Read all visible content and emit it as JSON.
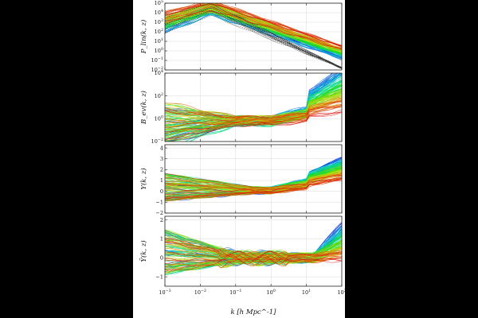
{
  "colors": {
    "background_outer": "#000000",
    "figure_background": "#ffffff",
    "grid": "#cfcfcf",
    "reference_black": "#000000"
  },
  "chart_data": [
    {
      "type": "line",
      "ylabel": "P_lin(k, z)",
      "yscale": "log",
      "ylim_exp": [
        -2,
        5
      ],
      "ytick_labels": [
        "10^-2",
        "10^-1",
        "10^0",
        "10^1",
        "10^2",
        "10^3",
        "10^4",
        "10^5"
      ],
      "xlim": [
        0.001,
        100
      ],
      "xscale": "log",
      "grid": true,
      "series_count": 120,
      "series_description": "many rainbow-colored curves, one per redshift, with a black dashed reference set",
      "representative_series": [
        {
          "color": "#d62728",
          "x": [
            0.001,
            0.01,
            0.05,
            0.1,
            1,
            10,
            100
          ],
          "y": [
            20000,
            60000,
            40000,
            20000,
            800,
            30,
            0.3
          ]
        },
        {
          "color": "#1f77b4",
          "x": [
            0.001,
            0.01,
            0.05,
            0.1,
            1,
            10,
            100
          ],
          "y": [
            600,
            3000,
            6000,
            4000,
            300,
            10,
            0.1
          ]
        },
        {
          "color": "#000000",
          "x": [
            0.001,
            0.01,
            0.05,
            0.1,
            1,
            10,
            100
          ],
          "y": [
            3000,
            20000,
            15000,
            8000,
            100,
            0.5,
            0.01
          ]
        }
      ]
    },
    {
      "type": "line",
      "ylabel": "B_ev(k, z)",
      "yscale": "log",
      "ylim_exp": [
        -2,
        4
      ],
      "ytick_labels": [
        "10^-2",
        "10^0",
        "10^2",
        "10^4"
      ],
      "xlim": [
        0.001,
        100
      ],
      "xscale": "log",
      "grid": true,
      "series_count": 120,
      "series_description": "colored ratio curves, mostly flat, fanning upward above k ~ 10",
      "representative_series": [
        {
          "color": "#1f77b4",
          "x": [
            0.001,
            0.1,
            1,
            10,
            100
          ],
          "y": [
            30,
            3,
            10,
            300,
            10000
          ]
        },
        {
          "color": "#d62728",
          "x": [
            0.001,
            0.1,
            1,
            10,
            100
          ],
          "y": [
            0.1,
            1,
            5,
            50,
            300
          ]
        }
      ]
    },
    {
      "type": "line",
      "ylabel": "Y(k, z)",
      "yscale": "linear",
      "ylim": [
        -2,
        4.3
      ],
      "ytick_labels": [
        "-2",
        "-1",
        "0",
        "1",
        "2",
        "3",
        "4"
      ],
      "xlim": [
        0.001,
        100
      ],
      "xscale": "log",
      "grid": true,
      "series_count": 120,
      "series_description": "colored curves spread near 0 to 1, diverging upward toward k = 100",
      "representative_series": [
        {
          "color": "#1f77b4",
          "x": [
            0.001,
            0.1,
            1,
            10,
            100
          ],
          "y": [
            1.5,
            0.5,
            1,
            2,
            4
          ]
        },
        {
          "color": "#d62728",
          "x": [
            0.001,
            0.1,
            1,
            10,
            100
          ],
          "y": [
            -1,
            -0.5,
            0.5,
            1.3,
            2
          ]
        }
      ]
    },
    {
      "type": "line",
      "ylabel": "Ỹ(k, z)",
      "yscale": "linear",
      "ylim": [
        -1.5,
        2.2
      ],
      "ytick_labels": [
        "-1",
        "0",
        "1",
        "2"
      ],
      "xlim": [
        0.001,
        100
      ],
      "xscale": "log",
      "xticks": [
        0.001,
        0.01,
        0.1,
        1,
        10,
        100
      ],
      "xtick_labels": [
        "10^-3",
        "10^-2",
        "10^-1",
        "10^0",
        "10^1",
        "10^2"
      ],
      "xlabel": "k [h Mpc^-1]",
      "grid": true,
      "series_count": 120,
      "series_description": "normalized colored curves near 0, oscillating around k ~ 0.1, fanning up above k ~ 20",
      "representative_series": [
        {
          "color": "#1f77b4",
          "x": [
            0.001,
            0.1,
            1,
            10,
            100
          ],
          "y": [
            1.5,
            0,
            -0.3,
            0.2,
            1.8
          ]
        },
        {
          "color": "#d62728",
          "x": [
            0.001,
            0.1,
            1,
            10,
            100
          ],
          "y": [
            -0.8,
            -0.2,
            0.2,
            0,
            -0.1
          ]
        }
      ]
    }
  ]
}
